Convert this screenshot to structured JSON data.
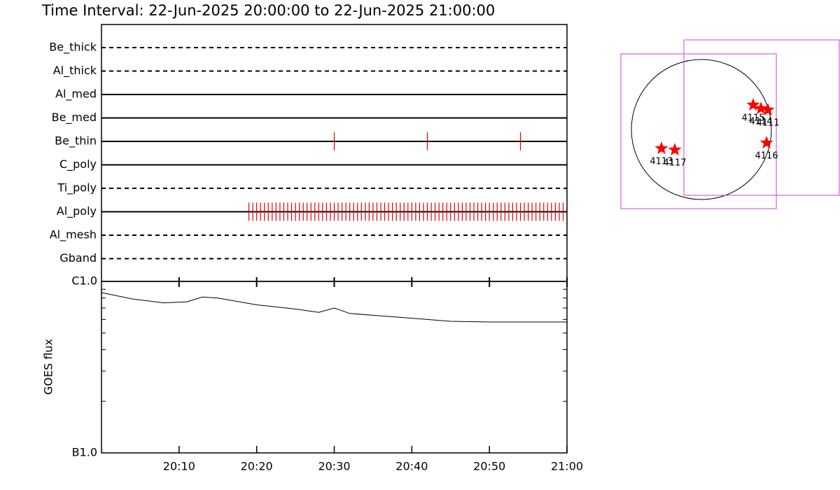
{
  "chart_data": [
    {
      "type": "timeline",
      "title": "Time Interval: 22-Jun-2025 20:00:00 to 22-Jun-2025 21:00:00",
      "categories": [
        "Be_thick",
        "Al_thick",
        "Al_med",
        "Be_med",
        "Be_thin",
        "C_poly",
        "Ti_poly",
        "Al_poly",
        "Al_mesh",
        "Gband"
      ],
      "styles": [
        "dashed",
        "dashed",
        "solid",
        "solid",
        "solid",
        "solid",
        "dashed",
        "solid",
        "dashed",
        "dashed"
      ],
      "color": "#e00000",
      "xlim": [
        "20:00",
        "21:00"
      ],
      "observations": [
        [],
        [],
        [],
        [],
        [
          "20:30:00",
          "20:42:00",
          "20:54:00"
        ],
        [],
        [],
        [
          "20:19:00",
          "20:19:30",
          "20:20:00",
          "20:20:30",
          "20:21:00",
          "20:21:30",
          "20:22:00",
          "20:22:30",
          "20:23:00",
          "20:23:30",
          "20:24:00",
          "20:24:30",
          "20:25:00",
          "20:25:30",
          "20:26:00",
          "20:26:30",
          "20:27:00",
          "20:27:30",
          "20:28:00",
          "20:28:30",
          "20:29:00",
          "20:29:30",
          "20:30:00",
          "20:30:30",
          "20:31:00",
          "20:31:30",
          "20:32:00",
          "20:32:30",
          "20:33:00",
          "20:33:30",
          "20:34:00",
          "20:34:30",
          "20:35:00",
          "20:35:30",
          "20:36:00",
          "20:36:30",
          "20:37:00",
          "20:37:30",
          "20:38:00",
          "20:38:30",
          "20:39:00",
          "20:39:30",
          "20:40:00",
          "20:40:30",
          "20:41:00",
          "20:41:30",
          "20:42:00",
          "20:42:30",
          "20:43:00",
          "20:43:30",
          "20:44:00",
          "20:44:30",
          "20:45:00",
          "20:45:30",
          "20:46:00",
          "20:46:30",
          "20:47:00",
          "20:47:30",
          "20:48:00",
          "20:48:30",
          "20:49:00",
          "20:49:30",
          "20:50:00",
          "20:50:30",
          "20:51:00",
          "20:51:30",
          "20:52:00",
          "20:52:30",
          "20:53:00",
          "20:53:30",
          "20:54:00",
          "20:54:30",
          "20:55:00",
          "20:55:30",
          "20:56:00",
          "20:56:30",
          "20:57:00",
          "20:57:30",
          "20:58:00",
          "20:58:30",
          "20:59:00",
          "20:59:30"
        ],
        [],
        []
      ]
    },
    {
      "type": "line",
      "ylabel": "GOES flux",
      "log_scale": true,
      "color": "#000000",
      "x": [
        "20:00",
        "20:04",
        "20:08",
        "20:11",
        "20:13",
        "20:15",
        "20:20",
        "20:25",
        "20:28",
        "20:30",
        "20:32",
        "20:36",
        "20:40",
        "20:45",
        "20:50",
        "20:55",
        "21:00"
      ],
      "values": [
        8.6e-07,
        7.9e-07,
        7.5e-07,
        7.6e-07,
        8.1e-07,
        8e-07,
        7.3e-07,
        6.9e-07,
        6.6e-07,
        7e-07,
        6.5e-07,
        6.3e-07,
        6.1e-07,
        5.85e-07,
        5.8e-07,
        5.8e-07,
        5.8e-07
      ],
      "xlim": [
        "20:00",
        "21:00"
      ],
      "xticks": [
        "20:10",
        "20:20",
        "20:30",
        "20:40",
        "20:50",
        "21:00"
      ],
      "ylim": [
        1e-07,
        1e-06
      ],
      "yticks": [
        {
          "value": 1e-07,
          "label": "B1.0"
        },
        {
          "value": 1e-06,
          "label": "C1.0"
        }
      ],
      "yminorticks": [
        2e-07,
        3e-07,
        4e-07,
        5e-07,
        6e-07,
        7e-07,
        8e-07,
        9e-07
      ]
    },
    {
      "type": "map",
      "rsun": 950,
      "box_color": "#d040d0",
      "star_color": "#ff0000",
      "boxes": [
        {
          "x": [
            -1093,
            1017
          ],
          "y": [
            -1074,
            1026
          ]
        },
        {
          "x": [
            -238,
            1871
          ],
          "y": [
            -893,
            1216
          ]
        }
      ],
      "regions": [
        {
          "label": "4115",
          "x": 703,
          "y": 333
        },
        {
          "label": "4114",
          "x": 808,
          "y": 285
        },
        {
          "label": "4111",
          "x": 903,
          "y": 266
        },
        {
          "label": "4116",
          "x": 884,
          "y": -181
        },
        {
          "label": "4113",
          "x": -542,
          "y": -257
        },
        {
          "label": "4117",
          "x": -361,
          "y": -276
        }
      ]
    }
  ]
}
